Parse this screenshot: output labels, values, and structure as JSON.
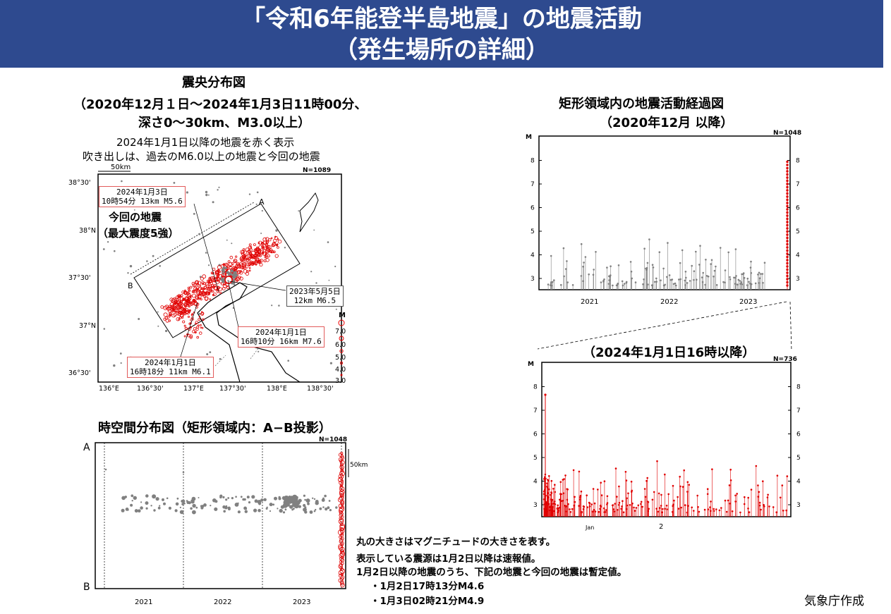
{
  "header": {
    "title_line1": "「令和6年能登半島地震」の地震活動",
    "title_line2": "（発生場所の詳細）"
  },
  "map": {
    "title": "震央分布図",
    "subtitle_line1": "（2020年12月１日～2024年1月3日11時00分、",
    "subtitle_line2": "深さ0～30km、M3.0以上）",
    "note_line1": "2024年1月1日以降の地震を赤く表示",
    "note_line2": "吹き出しは、過去のM6.0以上の地震と今回の地震",
    "scale_label": "50km",
    "count": "N=1089",
    "lat_labels": [
      "38°30'",
      "38°N",
      "37°30'",
      "37°N",
      "36°30'"
    ],
    "lon_labels": [
      "136°E",
      "136°30'",
      "137°E",
      "137°30'",
      "138°E",
      "138°30'"
    ],
    "label_a": "A",
    "label_b": "B",
    "current_quake_line1": "今回の地震",
    "current_quake_line2": "（最大震度5強）",
    "callouts": [
      {
        "date": "2024年1月3日",
        "detail": "10時54分 13km  M5.6"
      },
      {
        "date": "2023年5月5日",
        "detail": "12km  M6.5"
      },
      {
        "date": "2024年1月1日",
        "detail": "16時10分 16km  M7.6"
      },
      {
        "date": "2024年1月1日",
        "detail": "16時18分 11km  M6.1"
      }
    ],
    "mag_legend_title": "M",
    "mag_legend": [
      "7.0",
      "6.0",
      "5.0",
      "4.0",
      "3.0"
    ]
  },
  "spacetime": {
    "title": "時空間分布図（矩形領域内：A−B投影）",
    "label_a": "A",
    "label_b": "B",
    "count": "N=1048",
    "scale_label": "50km",
    "years": [
      "2021",
      "2022",
      "2023"
    ]
  },
  "mt_all": {
    "title": "矩形領域内の地震活動経過図",
    "subtitle": "（2020年12月 以降）",
    "ylabel": "M",
    "count": "N=1048",
    "yticks": [
      "3",
      "4",
      "5",
      "6",
      "7",
      "8"
    ],
    "years": [
      "2021",
      "2022",
      "2023"
    ]
  },
  "mt_recent": {
    "title": "（2024年1月1日16時以降）",
    "ylabel": "M",
    "count": "N=736",
    "yticks": [
      "3",
      "4",
      "5",
      "6",
      "7",
      "8"
    ],
    "xticks": [
      "Jan",
      "2"
    ]
  },
  "footnotes": [
    "丸の大きさはマグニチュードの大きさを表す。",
    "表示している震源は1月2日以降は速報値。",
    "1月2日以降の地震のうち、下記の地震と今回の地震は暫定値。",
    "・1月2日17時13分M4.6",
    "・1月3日02時21分M4.9"
  ],
  "credit": "気象庁作成",
  "colors": {
    "banner": "#2e4a8f",
    "recent": "#e00000",
    "past": "#808080"
  }
}
